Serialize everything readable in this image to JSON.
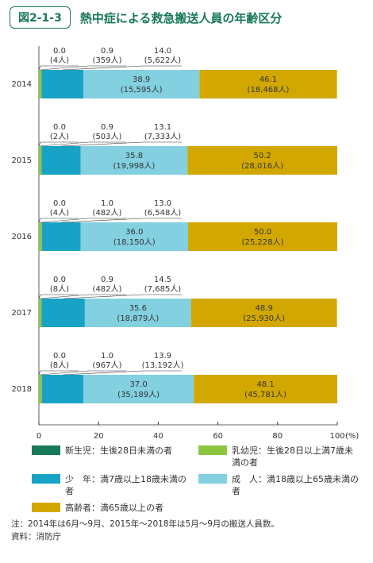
{
  "chart_data": {
    "type": "stacked-barh",
    "badge": "図2-1-3",
    "title": "熱中症による救急搬送人員の年齢区分",
    "categories": [
      "2014",
      "2015",
      "2016",
      "2017",
      "2018"
    ],
    "series": [
      {
        "name": "新生児：生後28日未満の者",
        "color": "#17785a",
        "values": [
          0.0,
          0.0,
          0.0,
          0.0,
          0.0
        ],
        "value_labels": [
          "0.0",
          "0.0",
          "0.0",
          "0.0",
          "0.0"
        ],
        "count_labels": [
          "(4人)",
          "(2人)",
          "(4人)",
          "(8人)",
          "(8人)"
        ]
      },
      {
        "name": "乳幼児：生後28日以上満7歳未満の者",
        "color": "#8cc63f",
        "values": [
          0.9,
          0.9,
          1.0,
          0.9,
          1.0
        ],
        "value_labels": [
          "0.9",
          "0.9",
          "1.0",
          "0.9",
          "1.0"
        ],
        "count_labels": [
          "(359人)",
          "(503人)",
          "(482人)",
          "(482人)",
          "(967人)"
        ]
      },
      {
        "name": "少　年：満7歳以上18歳未満の者",
        "color": "#18a3c6",
        "values": [
          14.0,
          13.1,
          13.0,
          14.5,
          13.9
        ],
        "value_labels": [
          "14.0",
          "13.1",
          "13.0",
          "14.5",
          "13.9"
        ],
        "count_labels": [
          "(5,622人)",
          "(7,333人)",
          "(6,548人)",
          "(7,685人)",
          "(13,192人)"
        ]
      },
      {
        "name": "成　人：満18歳以上65歳未満の者",
        "color": "#82d0e0",
        "values": [
          38.9,
          35.8,
          36.0,
          35.6,
          37.0
        ],
        "value_labels": [
          "38.9",
          "35.8",
          "36.0",
          "35.6",
          "37.0"
        ],
        "count_labels": [
          "(15,595人)",
          "(19,998人)",
          "(18,150人)",
          "(18,879人)",
          "(35,189人)"
        ]
      },
      {
        "name": "高齢者：満65歳以上の者",
        "color": "#d2a800",
        "values": [
          46.1,
          50.2,
          50.0,
          48.9,
          48.1
        ],
        "value_labels": [
          "46.1",
          "50.2",
          "50.0",
          "48.9",
          "48.1"
        ],
        "count_labels": [
          "(18,468人)",
          "(28,016人)",
          "(25,228人)",
          "(25,930人)",
          "(45,781人)"
        ]
      }
    ],
    "xlim": [
      0,
      100
    ],
    "xticks": [
      0,
      20,
      40,
      60,
      80,
      100
    ],
    "x_unit": "(%)",
    "notes": [
      "注：2014年は6月～9月、2015年～2018年は5月～9月の搬送人員数。",
      "資料：消防庁"
    ]
  }
}
